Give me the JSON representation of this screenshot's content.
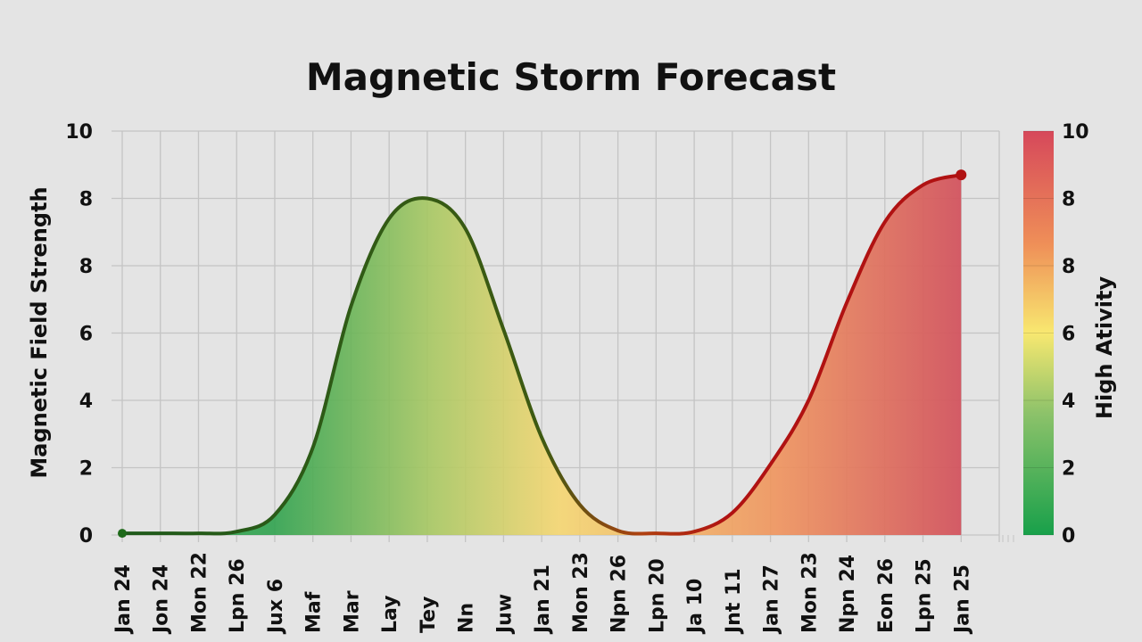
{
  "chart_data": {
    "type": "area",
    "title": "Magnetic Storm Forecast",
    "ylabel": "Magnetic Field Strength",
    "colorbar_label": "High Ativity",
    "categories": [
      "Jan 24",
      "Jon 24",
      "Mon 22",
      "Lpn 26",
      "Jux 6",
      "Maf",
      "Mar",
      "Lay",
      "Tey",
      "Nn",
      "Juw",
      "Jan 21",
      "Mon 23",
      "Npn 26",
      "Lpn 20",
      "Ja 10",
      "Jnt 11",
      "Jan 27",
      "Mon 23",
      "Npn 24",
      "Eon 26",
      "Lpn 25",
      "Jan 25"
    ],
    "values": [
      0.05,
      0.05,
      0.05,
      0.1,
      0.6,
      2.6,
      6.8,
      9.4,
      10.0,
      9.1,
      6.1,
      2.9,
      0.9,
      0.13,
      0.05,
      0.1,
      0.66,
      2.1,
      4.0,
      6.9,
      9.3,
      10.4,
      10.7
    ],
    "ylim": [
      0,
      12
    ],
    "y_tick_labels": [
      "0",
      "2",
      "4",
      "6",
      "8",
      "8",
      "10"
    ],
    "colorbar_tick_labels": [
      "0",
      "2",
      "4",
      "6",
      "8",
      "8",
      "10"
    ],
    "grid": true,
    "colors": {
      "line_low": "#1e5a1a",
      "line_high": "#b01212",
      "fill_stops": [
        "#2fa24e",
        "#a9c862",
        "#f5d670",
        "#ef935c",
        "#d2545f"
      ],
      "colorbar_stops": [
        "#18a04a",
        "#8cc26a",
        "#f8e870",
        "#ef8f58",
        "#d6485a"
      ]
    }
  }
}
